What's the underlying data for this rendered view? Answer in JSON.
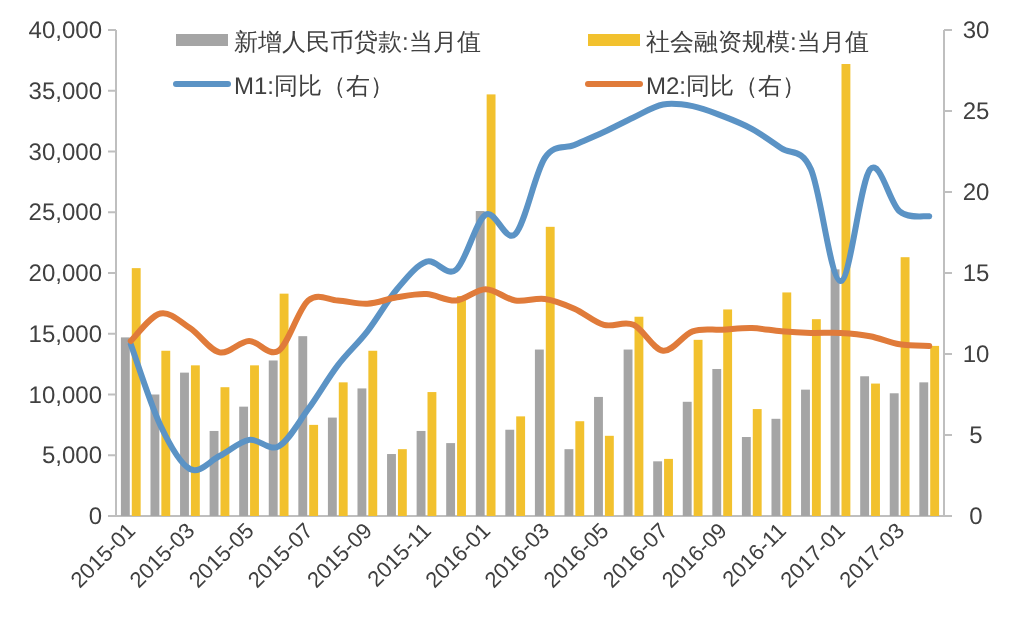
{
  "chart_data": {
    "type": "bar",
    "categories": [
      "2015-01",
      null,
      "2015-03",
      null,
      "2015-05",
      null,
      "2015-07",
      null,
      "2015-09",
      null,
      "2015-11",
      null,
      "2016-01",
      null,
      "2016-03",
      null,
      "2016-05",
      null,
      "2016-07",
      null,
      "2016-09",
      null,
      "2016-11",
      null,
      "2017-01",
      null,
      "2017-03",
      null
    ],
    "series": [
      {
        "name": "新增人民币贷款:当月值",
        "color": "#a5a5a5",
        "values": [
          14700,
          10000,
          11800,
          7000,
          9000,
          12800,
          14800,
          8100,
          10500,
          5100,
          7000,
          6000,
          25100,
          7100,
          13700,
          5500,
          9800,
          13700,
          4500,
          9400,
          12100,
          6500,
          8000,
          10400,
          20300,
          11500,
          10100,
          11000
        ]
      },
      {
        "name": "社会融资规模:当月值",
        "color": "#f2c12e",
        "values": [
          20400,
          13600,
          12400,
          10600,
          12400,
          18300,
          7500,
          11000,
          13600,
          5500,
          10200,
          18100,
          34700,
          8200,
          23800,
          7800,
          6600,
          16400,
          4700,
          14500,
          17000,
          8800,
          18400,
          16200,
          37200,
          10900,
          21300,
          14000
        ]
      },
      {
        "name": "M1:同比（右）",
        "color": "#5b93c5",
        "type": "line",
        "axis": "y2",
        "values": [
          10.6,
          5.6,
          2.9,
          3.7,
          4.7,
          4.3,
          6.6,
          9.3,
          11.4,
          14.0,
          15.7,
          15.2,
          18.6,
          17.4,
          22.1,
          22.9,
          23.7,
          24.6,
          25.4,
          25.3,
          24.7,
          23.9,
          22.7,
          21.4,
          14.5,
          21.4,
          18.8,
          18.5
        ]
      },
      {
        "name": "M2:同比（右）",
        "color": "#e07b3a",
        "type": "line",
        "axis": "y2",
        "values": [
          10.8,
          12.5,
          11.6,
          10.1,
          10.8,
          10.2,
          13.3,
          13.3,
          13.1,
          13.5,
          13.7,
          13.3,
          14.0,
          13.3,
          13.4,
          12.8,
          11.8,
          11.8,
          10.2,
          11.4,
          11.5,
          11.6,
          11.4,
          11.3,
          11.3,
          11.1,
          10.6,
          10.5
        ]
      }
    ],
    "ylim": [
      0,
      40000
    ],
    "yticks": [
      {
        "value": 0,
        "label": "0"
      },
      {
        "value": 5000,
        "label": "5,000"
      },
      {
        "value": 10000,
        "label": "10,000"
      },
      {
        "value": 15000,
        "label": "15,000"
      },
      {
        "value": 20000,
        "label": "20,000"
      },
      {
        "value": 25000,
        "label": "25,000"
      },
      {
        "value": 30000,
        "label": "30,000"
      },
      {
        "value": 35000,
        "label": "35,000"
      },
      {
        "value": 40000,
        "label": "40,000"
      }
    ],
    "y2lim": [
      0,
      30
    ],
    "y2ticks": [
      0,
      5,
      10,
      15,
      20,
      25,
      30
    ],
    "legend": "top"
  }
}
